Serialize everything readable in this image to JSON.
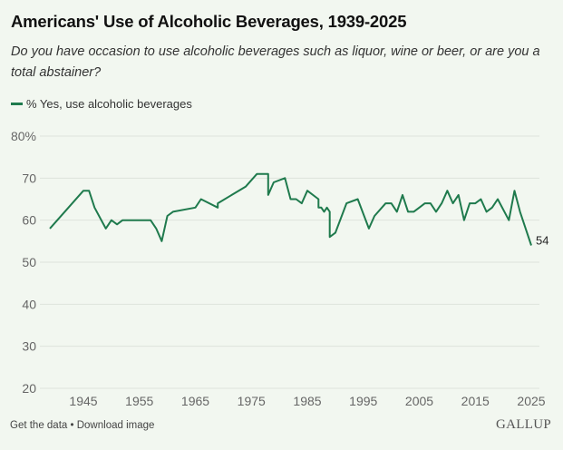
{
  "header": {
    "title": "Americans' Use of Alcoholic Beverages, 1939-2025",
    "subtitle": "Do you have occasion to use alcoholic beverages such as liquor, wine or beer, or are you a total abstainer?"
  },
  "legend": {
    "label": "% Yes, use alcoholic beverages",
    "color": "#1f7a4d"
  },
  "footer": {
    "get_data": "Get the data",
    "separator": "•",
    "download": "Download image",
    "brand": "GALLUP"
  },
  "chart_data": {
    "type": "line",
    "title": "Americans' Use of Alcoholic Beverages, 1939-2025",
    "subtitle": "Do you have occasion to use alcoholic beverages such as liquor, wine or beer, or are you a total abstainer?",
    "xlabel": "",
    "ylabel": "",
    "xlim": [
      1939,
      2025
    ],
    "ylim": [
      20,
      80
    ],
    "grid": true,
    "legend_position": "top-left",
    "x_ticks": [
      1945,
      1955,
      1965,
      1975,
      1985,
      1995,
      2005,
      2015,
      2025
    ],
    "y_ticks": [
      20,
      30,
      40,
      50,
      60,
      70,
      80
    ],
    "y_tick_labels": [
      "20",
      "30",
      "40",
      "50",
      "60",
      "70",
      "80%"
    ],
    "end_label": "54",
    "series": [
      {
        "name": "% Yes, use alcoholic beverages",
        "color": "#1f7a4d",
        "x": [
          1939,
          1945,
          1946,
          1947,
          1949,
          1950,
          1951,
          1952,
          1957,
          1958,
          1959,
          1960,
          1961,
          1965,
          1966,
          1969,
          1969,
          1974,
          1976,
          1978,
          1978,
          1979,
          1981,
          1982,
          1983,
          1984,
          1985,
          1987,
          1987,
          1987.5,
          1988,
          1988.5,
          1989,
          1989,
          1990,
          1992,
          1994,
          1996,
          1997,
          1999,
          2000,
          2001,
          2002,
          2003,
          2004,
          2005,
          2006,
          2007,
          2008,
          2009,
          2010,
          2011,
          2012,
          2013,
          2014,
          2015,
          2016,
          2017,
          2018,
          2019,
          2021,
          2022,
          2023,
          2025
        ],
        "values": [
          58,
          67,
          67,
          63,
          58,
          60,
          59,
          60,
          60,
          58,
          55,
          61,
          62,
          63,
          65,
          63,
          64,
          68,
          71,
          71,
          66,
          69,
          70,
          65,
          65,
          64,
          67,
          65,
          63,
          63,
          62,
          63,
          62,
          56,
          57,
          64,
          65,
          58,
          61,
          64,
          64,
          62,
          66,
          62,
          62,
          63,
          64,
          64,
          62,
          64,
          67,
          64,
          66,
          60,
          64,
          64,
          65,
          62,
          63,
          65,
          60,
          67,
          62,
          54
        ]
      }
    ]
  }
}
